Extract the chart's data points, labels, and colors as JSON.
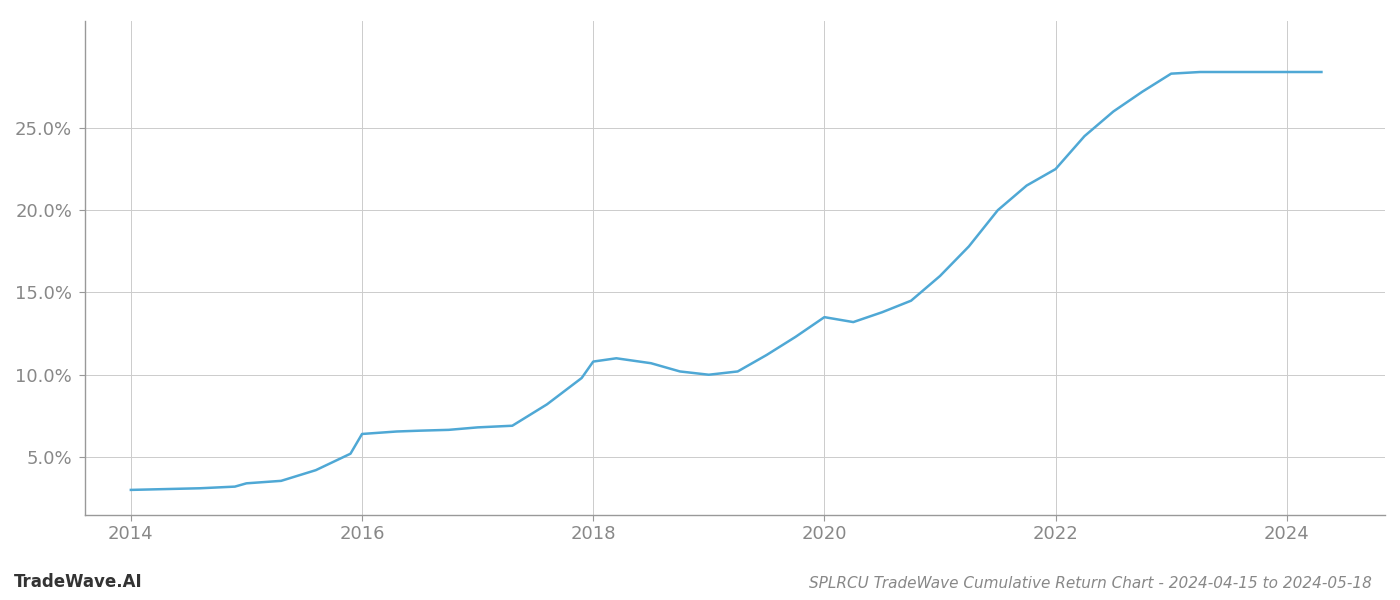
{
  "x_values": [
    2014.0,
    2014.3,
    2014.6,
    2014.9,
    2015.0,
    2015.3,
    2015.6,
    2015.9,
    2016.0,
    2016.3,
    2016.5,
    2016.75,
    2017.0,
    2017.3,
    2017.6,
    2017.9,
    2018.0,
    2018.2,
    2018.5,
    2018.75,
    2019.0,
    2019.25,
    2019.5,
    2019.75,
    2020.0,
    2020.25,
    2020.5,
    2020.75,
    2021.0,
    2021.25,
    2021.5,
    2021.75,
    2022.0,
    2022.25,
    2022.5,
    2022.75,
    2023.0,
    2023.25,
    2023.5,
    2023.75,
    2024.0,
    2024.3
  ],
  "y_values": [
    3.0,
    3.05,
    3.1,
    3.2,
    3.4,
    3.55,
    4.2,
    5.2,
    6.4,
    6.55,
    6.6,
    6.65,
    6.8,
    6.9,
    8.2,
    9.8,
    10.8,
    11.0,
    10.7,
    10.2,
    10.0,
    10.2,
    11.2,
    12.3,
    13.5,
    13.2,
    13.8,
    14.5,
    16.0,
    17.8,
    20.0,
    21.5,
    22.5,
    24.5,
    26.0,
    27.2,
    28.3,
    28.4,
    28.4,
    28.4,
    28.4,
    28.4
  ],
  "line_color": "#4fa8d5",
  "line_width": 1.8,
  "background_color": "#ffffff",
  "grid_color": "#cccccc",
  "title": "SPLRCU TradeWave Cumulative Return Chart - 2024-04-15 to 2024-05-18",
  "watermark": "TradeWave.AI",
  "yticks": [
    5.0,
    10.0,
    15.0,
    20.0,
    25.0
  ],
  "xticks": [
    2014,
    2016,
    2018,
    2020,
    2022,
    2024
  ],
  "ylim": [
    1.5,
    31.5
  ],
  "xlim": [
    2013.6,
    2024.85
  ],
  "tick_fontsize": 13,
  "title_fontsize": 11,
  "watermark_fontsize": 12
}
